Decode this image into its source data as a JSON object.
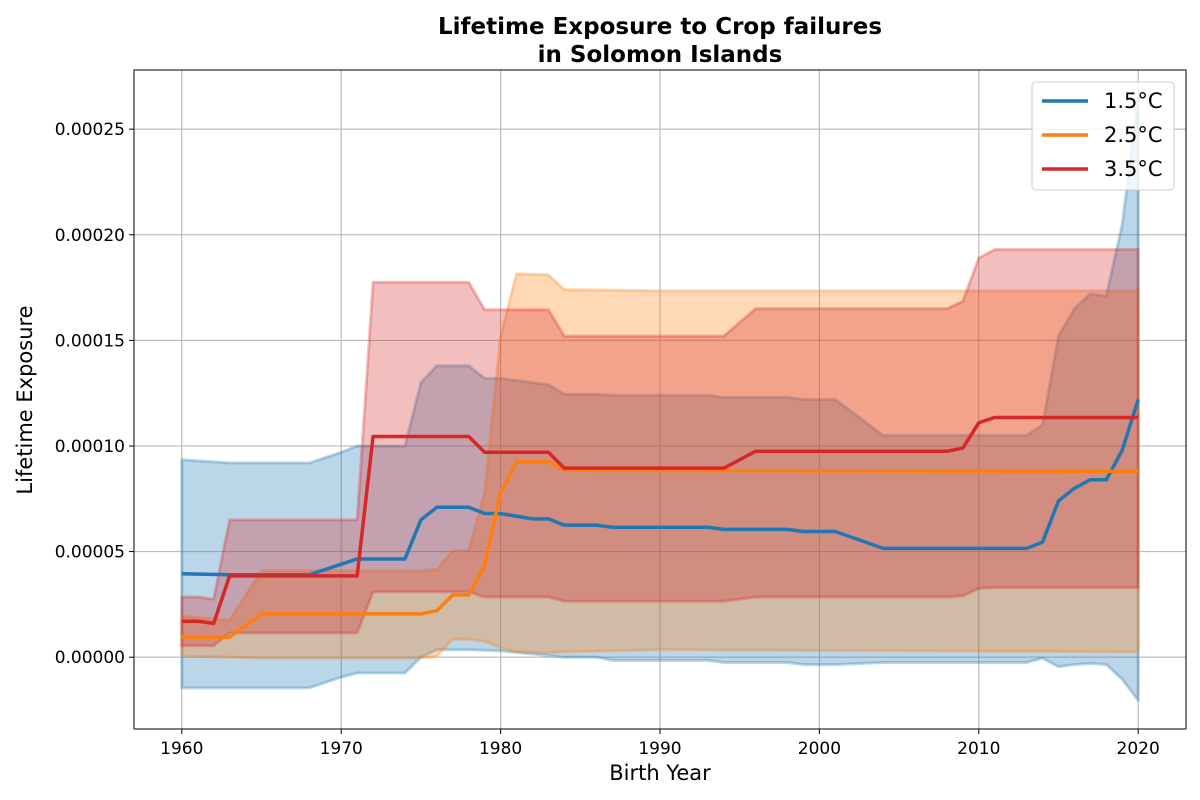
{
  "chart_data": {
    "type": "line",
    "title": [
      "Lifetime Exposure to Crop failures",
      "in Solomon Islands"
    ],
    "xlabel": "Birth Year",
    "ylabel": "Lifetime Exposure",
    "xlim": [
      1957,
      2023
    ],
    "ylim": [
      -3.4e-05,
      0.000278
    ],
    "xticks": [
      1960,
      1970,
      1980,
      1990,
      2000,
      2010,
      2020
    ],
    "xtick_labels": [
      "1960",
      "1970",
      "1980",
      "1990",
      "2000",
      "2010",
      "2020"
    ],
    "yticks": [
      0,
      5e-05,
      0.0001,
      0.00015,
      0.0002,
      0.00025
    ],
    "ytick_labels": [
      "0.00000",
      "0.00005",
      "0.00010",
      "0.00015",
      "0.00020",
      "0.00025"
    ],
    "grid": true,
    "legend_position": "top-right",
    "series": [
      {
        "name": "1.5°C",
        "color": "#1f77b4",
        "points": [
          [
            1960,
            3.95e-05
          ],
          [
            1963,
            3.9e-05
          ],
          [
            1968,
            3.9e-05
          ],
          [
            1971,
            4.65e-05
          ],
          [
            1974,
            4.65e-05
          ],
          [
            1975,
            6.5e-05
          ],
          [
            1976,
            7.1e-05
          ],
          [
            1978,
            7.1e-05
          ],
          [
            1979,
            6.8e-05
          ],
          [
            1980,
            6.8e-05
          ],
          [
            1982,
            6.55e-05
          ],
          [
            1983,
            6.55e-05
          ],
          [
            1984,
            6.25e-05
          ],
          [
            1986,
            6.25e-05
          ],
          [
            1987,
            6.15e-05
          ],
          [
            1989,
            6.15e-05
          ],
          [
            1993,
            6.15e-05
          ],
          [
            1994,
            6.05e-05
          ],
          [
            1998,
            6.05e-05
          ],
          [
            1999,
            5.95e-05
          ],
          [
            2001,
            5.95e-05
          ],
          [
            2004,
            5.15e-05
          ],
          [
            2013,
            5.15e-05
          ],
          [
            2014,
            5.45e-05
          ],
          [
            2015,
            7.4e-05
          ],
          [
            2016,
            8e-05
          ],
          [
            2017,
            8.4e-05
          ],
          [
            2018,
            8.4e-05
          ],
          [
            2019,
            9.8e-05
          ],
          [
            2020,
            0.000122
          ]
        ],
        "band_upper": [
          [
            1960,
            9.35e-05
          ],
          [
            1963,
            9.2e-05
          ],
          [
            1968,
            9.2e-05
          ],
          [
            1970,
            9.7e-05
          ],
          [
            1971,
            0.0001
          ],
          [
            1974,
            0.0001
          ],
          [
            1975,
            0.00013
          ],
          [
            1976,
            0.000138
          ],
          [
            1978,
            0.000138
          ],
          [
            1979,
            0.000132
          ],
          [
            1980,
            0.000132
          ],
          [
            1982,
            0.00013
          ],
          [
            1983,
            0.000129
          ],
          [
            1984,
            0.0001245
          ],
          [
            1986,
            0.0001245
          ],
          [
            1987,
            0.000124
          ],
          [
            1993,
            0.000124
          ],
          [
            1994,
            0.000123
          ],
          [
            1998,
            0.000123
          ],
          [
            1999,
            0.000122
          ],
          [
            2001,
            0.000122
          ],
          [
            2004,
            0.000105
          ],
          [
            2013,
            0.000105
          ],
          [
            2014,
            0.00011
          ],
          [
            2015,
            0.000152
          ],
          [
            2016,
            0.000165
          ],
          [
            2017,
            0.000172
          ],
          [
            2018,
            0.000171
          ],
          [
            2019,
            0.000205
          ],
          [
            2020,
            0.000265
          ]
        ],
        "band_lower": [
          [
            1960,
            -1.45e-05
          ],
          [
            1963,
            -1.45e-05
          ],
          [
            1968,
            -1.45e-05
          ],
          [
            1970,
            -9.5e-06
          ],
          [
            1971,
            -7.5e-06
          ],
          [
            1974,
            -7.5e-06
          ],
          [
            1975,
            0.0
          ],
          [
            1976,
            3.5e-06
          ],
          [
            1978,
            3.5e-06
          ],
          [
            1980,
            3e-06
          ],
          [
            1982,
            1.5e-06
          ],
          [
            1984,
            0.0
          ],
          [
            1986,
            0.0
          ],
          [
            1987,
            -1.5e-06
          ],
          [
            1993,
            -1.5e-06
          ],
          [
            1994,
            -2.5e-06
          ],
          [
            1998,
            -2.5e-06
          ],
          [
            1999,
            -3.5e-06
          ],
          [
            2001,
            -3.5e-06
          ],
          [
            2004,
            -2.5e-06
          ],
          [
            2013,
            -2.5e-06
          ],
          [
            2014,
            -5e-07
          ],
          [
            2015,
            -4.5e-06
          ],
          [
            2016,
            -3.5e-06
          ],
          [
            2017,
            -3e-06
          ],
          [
            2018,
            -3.5e-06
          ],
          [
            2019,
            -1.05e-05
          ],
          [
            2020,
            -2.05e-05
          ]
        ]
      },
      {
        "name": "2.5°C",
        "color": "#ff7f0e",
        "points": [
          [
            1960,
            9.5e-06
          ],
          [
            1963,
            9.5e-06
          ],
          [
            1965,
            2.05e-05
          ],
          [
            1975,
            2.05e-05
          ],
          [
            1976,
            2.2e-05
          ],
          [
            1977,
            2.95e-05
          ],
          [
            1978,
            2.95e-05
          ],
          [
            1979,
            4.35e-05
          ],
          [
            1980,
            7.8e-05
          ],
          [
            1981,
            9.25e-05
          ],
          [
            1983,
            9.25e-05
          ],
          [
            1984,
            8.85e-05
          ],
          [
            2020,
            8.8e-05
          ]
        ],
        "band_upper": [
          [
            1960,
            1.95e-05
          ],
          [
            1963,
            1.75e-05
          ],
          [
            1965,
            4.1e-05
          ],
          [
            1975,
            4.1e-05
          ],
          [
            1976,
            4.15e-05
          ],
          [
            1977,
            5.05e-05
          ],
          [
            1978,
            5.05e-05
          ],
          [
            1979,
            7.8e-05
          ],
          [
            1980,
            0.000152
          ],
          [
            1981,
            0.0001815
          ],
          [
            1983,
            0.000181
          ],
          [
            1984,
            0.000174
          ],
          [
            1990,
            0.0001735
          ],
          [
            2020,
            0.0001735
          ]
        ],
        "band_lower": [
          [
            1960,
            5e-07
          ],
          [
            1963,
            0.0
          ],
          [
            1965,
            -5e-07
          ],
          [
            1975,
            -5e-07
          ],
          [
            1976,
            5e-07
          ],
          [
            1977,
            8.5e-06
          ],
          [
            1978,
            8.5e-06
          ],
          [
            1979,
            7.5e-06
          ],
          [
            1980,
            4.5e-06
          ],
          [
            1981,
            2.5e-06
          ],
          [
            1983,
            2e-06
          ],
          [
            1984,
            2.5e-06
          ],
          [
            1990,
            3.5e-06
          ],
          [
            2020,
            2.5e-06
          ]
        ]
      },
      {
        "name": "3.5°C",
        "color": "#d62728",
        "points": [
          [
            1960,
            1.7e-05
          ],
          [
            1961,
            1.7e-05
          ],
          [
            1962,
            1.6e-05
          ],
          [
            1963,
            3.85e-05
          ],
          [
            1971,
            3.85e-05
          ],
          [
            1972,
            0.0001045
          ],
          [
            1978,
            0.0001045
          ],
          [
            1979,
            9.7e-05
          ],
          [
            1983,
            9.7e-05
          ],
          [
            1984,
            8.95e-05
          ],
          [
            1994,
            8.95e-05
          ],
          [
            1996,
            9.75e-05
          ],
          [
            2008,
            9.75e-05
          ],
          [
            2009,
            9.9e-05
          ],
          [
            2010,
            0.000111
          ],
          [
            2011,
            0.0001135
          ],
          [
            2020,
            0.0001135
          ]
        ],
        "band_upper": [
          [
            1960,
            2.85e-05
          ],
          [
            1961,
            2.85e-05
          ],
          [
            1962,
            2.75e-05
          ],
          [
            1963,
            6.5e-05
          ],
          [
            1971,
            6.5e-05
          ],
          [
            1972,
            0.0001775
          ],
          [
            1978,
            0.0001775
          ],
          [
            1979,
            0.0001645
          ],
          [
            1983,
            0.0001645
          ],
          [
            1984,
            0.000152
          ],
          [
            1994,
            0.000152
          ],
          [
            1996,
            0.000165
          ],
          [
            2008,
            0.000165
          ],
          [
            2009,
            0.0001685
          ],
          [
            2010,
            0.000189
          ],
          [
            2011,
            0.000193
          ],
          [
            2020,
            0.000193
          ]
        ],
        "band_lower": [
          [
            1960,
            5.5e-06
          ],
          [
            1961,
            5.5e-06
          ],
          [
            1962,
            5.5e-06
          ],
          [
            1963,
            1.15e-05
          ],
          [
            1971,
            1.15e-05
          ],
          [
            1972,
            3.1e-05
          ],
          [
            1978,
            3.1e-05
          ],
          [
            1979,
            2.85e-05
          ],
          [
            1983,
            2.85e-05
          ],
          [
            1984,
            2.65e-05
          ],
          [
            1994,
            2.65e-05
          ],
          [
            1996,
            2.85e-05
          ],
          [
            2008,
            2.85e-05
          ],
          [
            2009,
            2.9e-05
          ],
          [
            2010,
            3.25e-05
          ],
          [
            2011,
            3.3e-05
          ],
          [
            2020,
            3.3e-05
          ]
        ]
      }
    ]
  }
}
